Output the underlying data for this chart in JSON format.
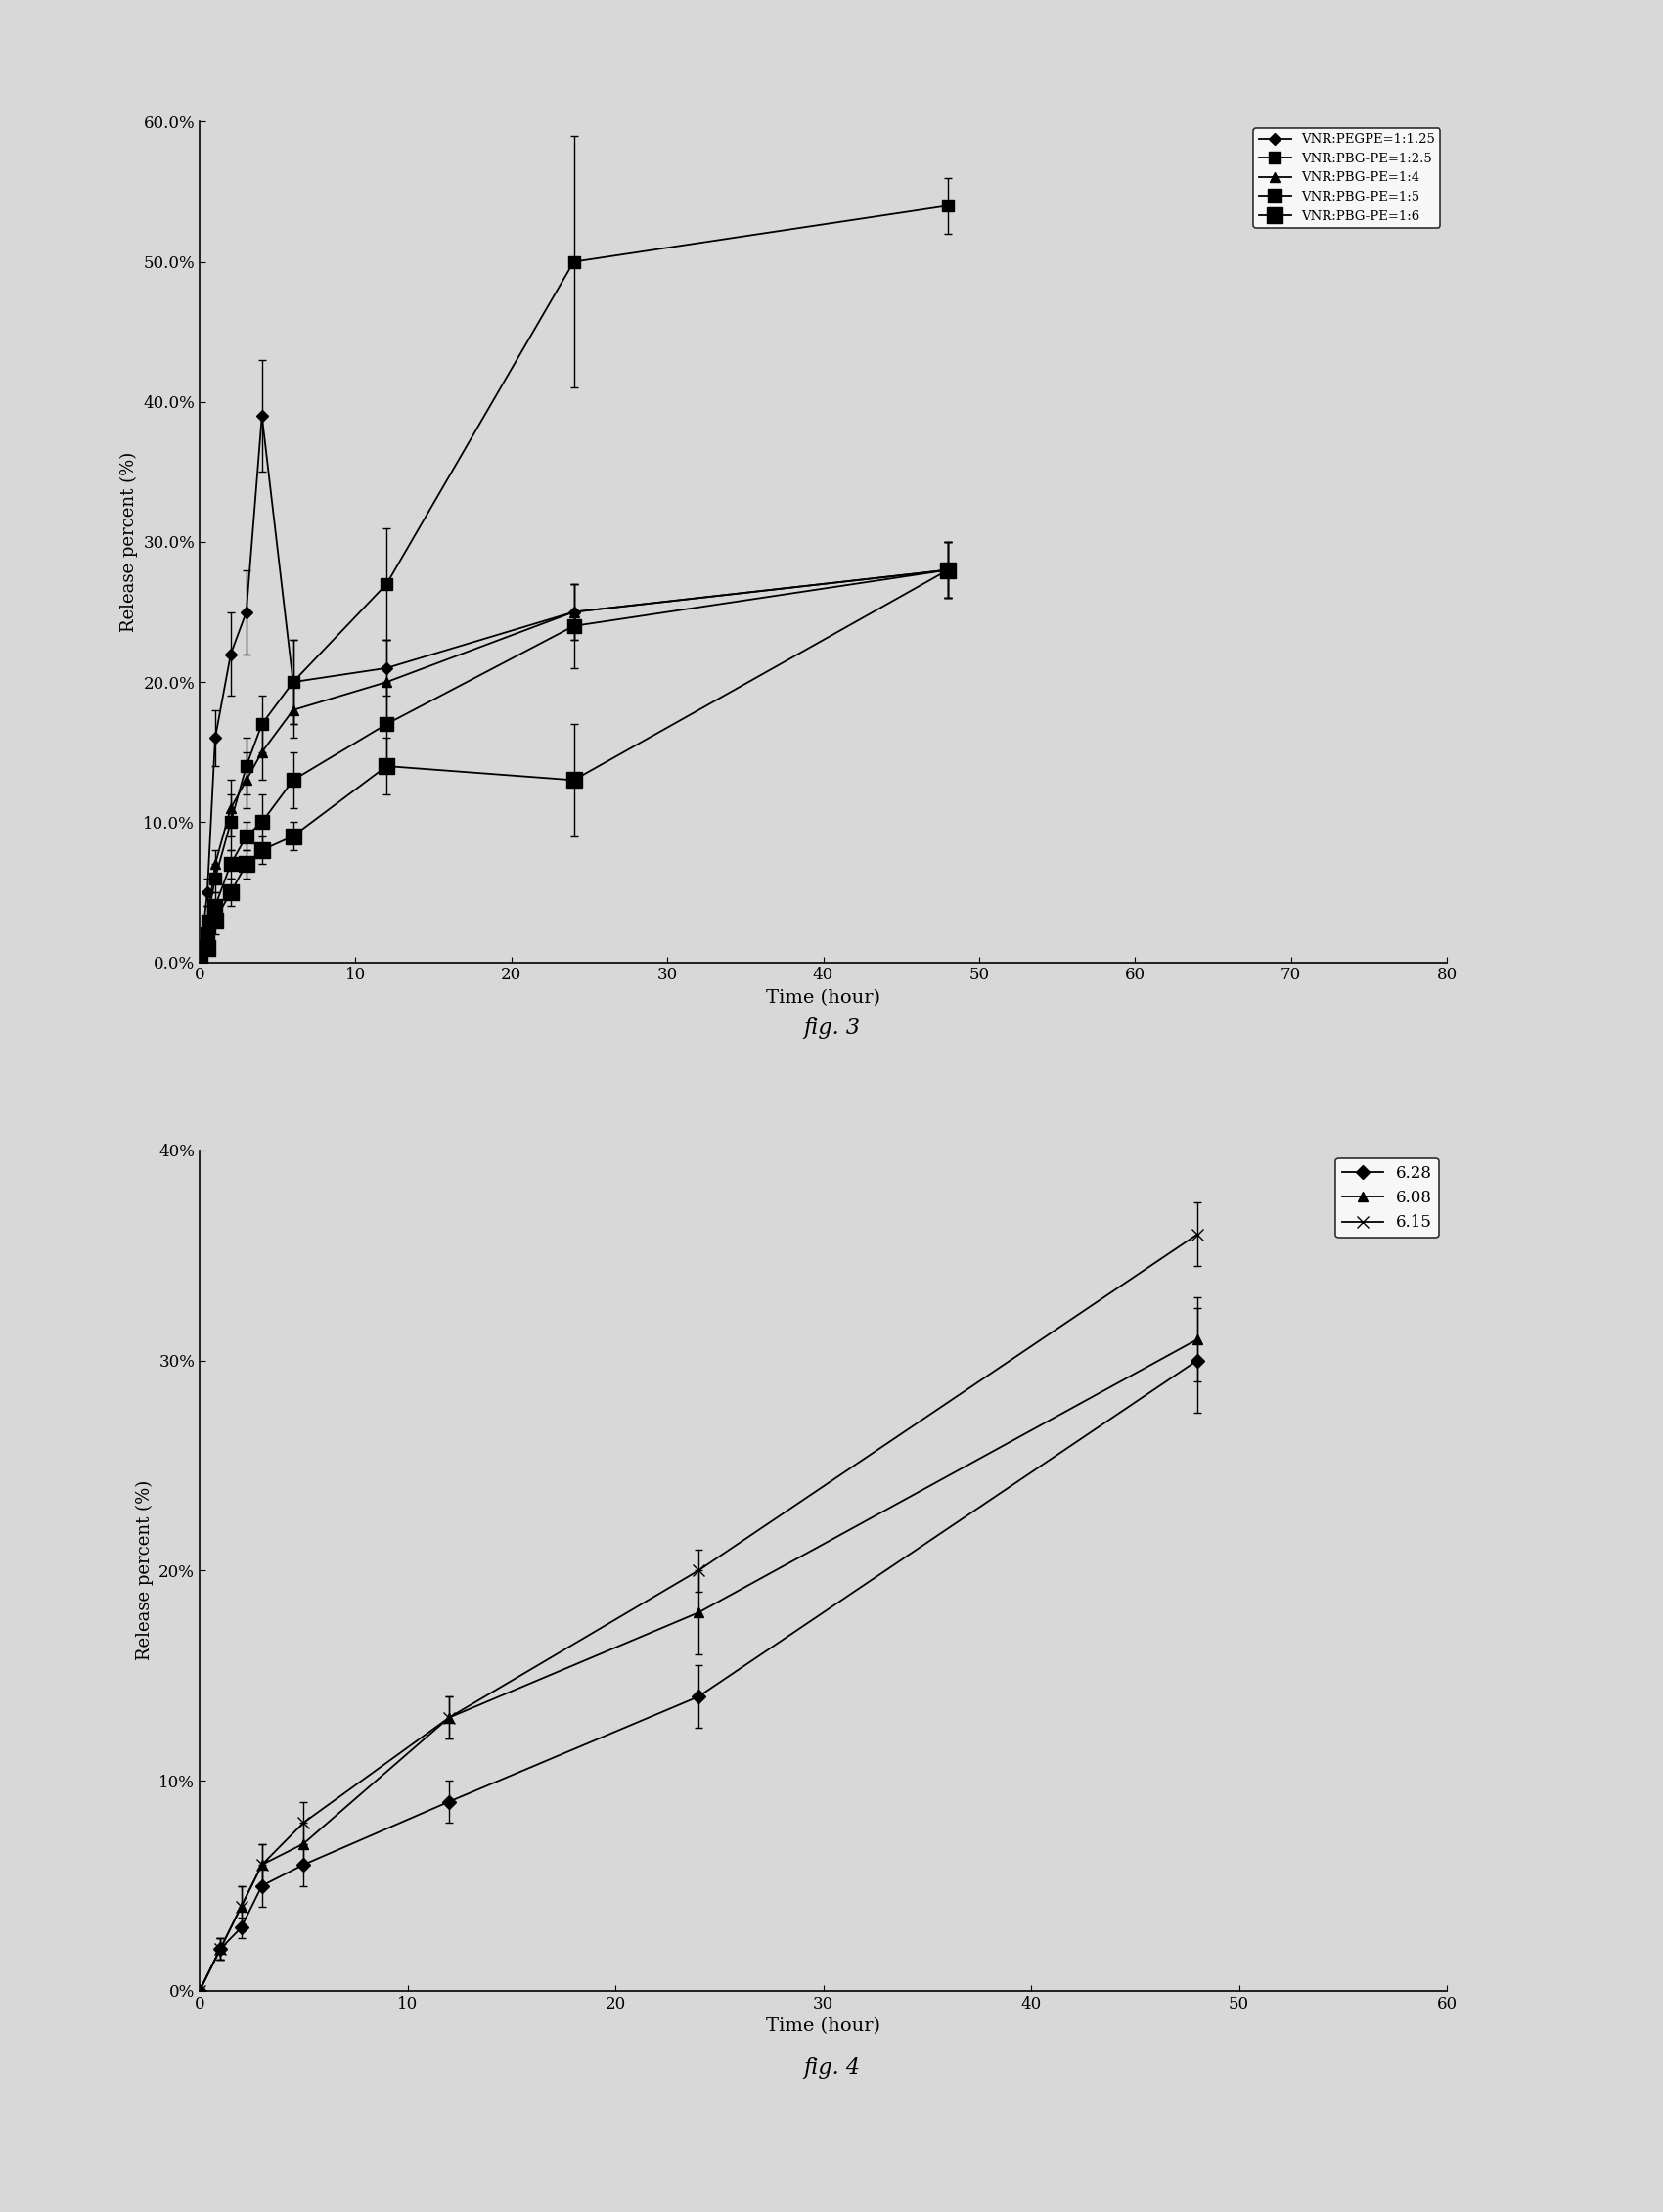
{
  "background_color": "#e8e8e8",
  "fig3": {
    "title": "fig. 3",
    "xlabel": "Time (hour)",
    "ylabel": "Release percent (%)",
    "xlim": [
      0,
      80
    ],
    "ylim": [
      0.0,
      0.6
    ],
    "yticks": [
      0.0,
      0.1,
      0.2,
      0.3,
      0.4,
      0.5,
      0.6
    ],
    "ytick_labels": [
      "0.0%",
      "10.0%",
      "20.0%",
      "30.0%",
      "40.0%",
      "50.0%",
      "60.0%"
    ],
    "xticks": [
      0,
      10,
      20,
      30,
      40,
      50,
      60,
      70,
      80
    ],
    "series": [
      {
        "label": "VNR:PEGPE=1:1.25",
        "x": [
          0,
          0.5,
          1,
          2,
          3,
          4,
          6,
          12,
          24,
          48
        ],
        "y": [
          0.0,
          0.05,
          0.16,
          0.22,
          0.25,
          0.39,
          0.2,
          0.21,
          0.25,
          0.28
        ],
        "yerr": [
          0,
          0.01,
          0.02,
          0.03,
          0.03,
          0.04,
          0.03,
          0.02,
          0.02,
          0.02
        ],
        "marker": "D",
        "markersize": 6
      },
      {
        "label": "VNR:PBG-PE=1:2.5",
        "x": [
          0,
          0.5,
          1,
          2,
          3,
          4,
          6,
          12,
          24,
          48
        ],
        "y": [
          0.0,
          0.03,
          0.06,
          0.1,
          0.14,
          0.17,
          0.2,
          0.27,
          0.5,
          0.54
        ],
        "yerr": [
          0,
          0.01,
          0.01,
          0.02,
          0.02,
          0.02,
          0.03,
          0.04,
          0.09,
          0.02
        ],
        "marker": "s",
        "markersize": 8
      },
      {
        "label": "VNR:PBG-PE=1:4",
        "x": [
          0,
          0.5,
          1,
          2,
          3,
          4,
          6,
          12,
          24,
          48
        ],
        "y": [
          0.0,
          0.03,
          0.07,
          0.11,
          0.13,
          0.15,
          0.18,
          0.2,
          0.25,
          0.28
        ],
        "yerr": [
          0,
          0.01,
          0.01,
          0.02,
          0.02,
          0.02,
          0.02,
          0.03,
          0.02,
          0.02
        ],
        "marker": "^",
        "markersize": 7
      },
      {
        "label": "VNR:PBG-PE=1:5",
        "x": [
          0,
          0.5,
          1,
          2,
          3,
          4,
          6,
          12,
          24,
          48
        ],
        "y": [
          0.0,
          0.02,
          0.04,
          0.07,
          0.09,
          0.1,
          0.13,
          0.17,
          0.24,
          0.28
        ],
        "yerr": [
          0,
          0.01,
          0.01,
          0.01,
          0.01,
          0.02,
          0.02,
          0.03,
          0.03,
          0.02
        ],
        "marker": "s",
        "markersize": 10
      },
      {
        "label": "VNR:PBG-PE=1:6",
        "x": [
          0,
          0.5,
          1,
          2,
          3,
          4,
          6,
          12,
          24,
          48
        ],
        "y": [
          0.0,
          0.01,
          0.03,
          0.05,
          0.07,
          0.08,
          0.09,
          0.14,
          0.13,
          0.28
        ],
        "yerr": [
          0,
          0.005,
          0.01,
          0.01,
          0.01,
          0.01,
          0.01,
          0.02,
          0.04,
          0.02
        ],
        "marker": "s",
        "markersize": 12
      }
    ],
    "legend_labels": [
      "VNR:PEGPE=1:1.25",
      "VNR:PBG-PE=1:2.5",
      "VNR:PBG-PE=1:4",
      "VNR:PBG-PE=1:5",
      "VNR:PBG-PE=1:6"
    ]
  },
  "fig4": {
    "title": "fig. 4",
    "xlabel": "Time (hour)",
    "ylabel": "Release percent (%)",
    "xlim": [
      0,
      60
    ],
    "ylim": [
      0.0,
      0.4
    ],
    "yticks": [
      0.0,
      0.1,
      0.2,
      0.3,
      0.4
    ],
    "ytick_labels": [
      "0%",
      "10%",
      "20%",
      "30%",
      "40%"
    ],
    "xticks": [
      0,
      10,
      20,
      30,
      40,
      50,
      60
    ],
    "series": [
      {
        "label": "6.28",
        "x": [
          0,
          1,
          2,
          3,
          5,
          12,
          24,
          48
        ],
        "y": [
          0.0,
          0.02,
          0.03,
          0.05,
          0.06,
          0.09,
          0.14,
          0.3
        ],
        "yerr": [
          0,
          0.005,
          0.005,
          0.01,
          0.01,
          0.01,
          0.015,
          0.025
        ],
        "marker": "D",
        "markersize": 7
      },
      {
        "label": "6.08",
        "x": [
          0,
          1,
          2,
          3,
          5,
          12,
          24,
          48
        ],
        "y": [
          0.0,
          0.02,
          0.04,
          0.06,
          0.07,
          0.13,
          0.18,
          0.31
        ],
        "yerr": [
          0,
          0.005,
          0.01,
          0.01,
          0.01,
          0.01,
          0.02,
          0.02
        ],
        "marker": "^",
        "markersize": 7
      },
      {
        "label": "6.15",
        "x": [
          0,
          1,
          2,
          3,
          5,
          12,
          24,
          48
        ],
        "y": [
          0.0,
          0.02,
          0.04,
          0.06,
          0.08,
          0.13,
          0.2,
          0.36
        ],
        "yerr": [
          0,
          0.005,
          0.01,
          0.01,
          0.01,
          0.01,
          0.01,
          0.015
        ],
        "marker": "x",
        "markersize": 9
      }
    ],
    "legend_labels": [
      "6.28",
      "6.08",
      "6.15"
    ]
  }
}
